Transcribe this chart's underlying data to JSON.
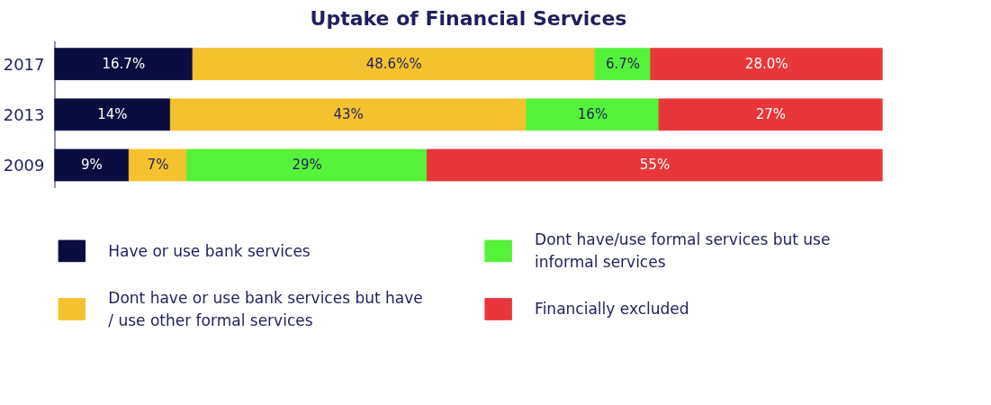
{
  "chart_data": {
    "type": "bar",
    "title": "Uptake of Financial Services",
    "orientation": "horizontal",
    "stacked": true,
    "categories": [
      "2017",
      "2013",
      "2009"
    ],
    "tick_labels": "y",
    "legend": "bottom",
    "grid": false,
    "series": [
      {
        "name": "Have or use bank services",
        "color": "#0b0d40",
        "values": [
          16.7,
          14,
          9
        ],
        "value_labels": [
          "16.7%",
          "14%",
          "9%"
        ]
      },
      {
        "name": "Dont have or use bank services but have / use other formal services",
        "color": "#f4c12f",
        "values": [
          48.6,
          43,
          7
        ],
        "value_labels": [
          "48.6%%",
          "43%",
          "7%"
        ]
      },
      {
        "name": "Dont have/use formal services but use informal services",
        "color": "#55f23a",
        "values": [
          6.7,
          16,
          29
        ],
        "value_labels": [
          "6.7%",
          "16%",
          "29%"
        ]
      },
      {
        "name": "Financially excluded",
        "color": "#e8363a",
        "values": [
          28.0,
          27,
          55
        ],
        "value_labels": [
          "28.0%",
          "27%",
          "55%"
        ]
      }
    ]
  }
}
